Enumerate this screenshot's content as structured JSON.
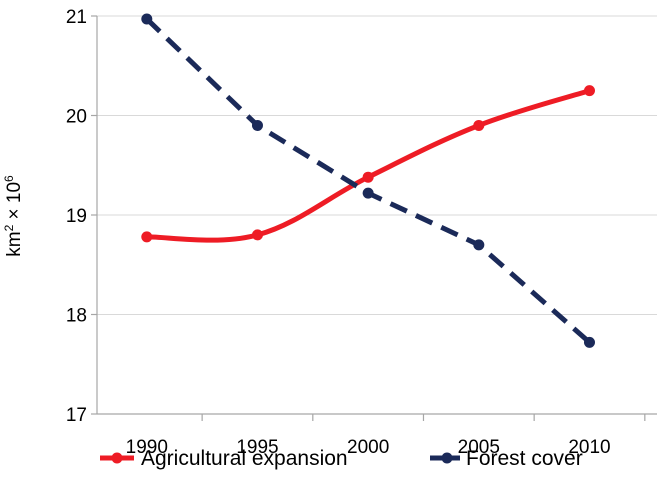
{
  "chart_data": {
    "type": "line",
    "x": [
      1990,
      1995,
      2000,
      2005,
      2010
    ],
    "x_tick_labels": [
      "1990",
      "1995",
      "2000",
      "2005",
      "2010"
    ],
    "y_tick_labels": [
      "17",
      "18",
      "19",
      "20",
      "21"
    ],
    "ylim": [
      17,
      21
    ],
    "ylabel": {
      "base": "km",
      "exp1": "2",
      "times": " × 10",
      "exp2": "6"
    },
    "grid": "horizontal",
    "legend_position": "bottom",
    "series": [
      {
        "name": "Agricultural expansion",
        "values": [
          18.78,
          18.8,
          19.38,
          19.9,
          20.25
        ],
        "color": "#ee1c25",
        "style": "solid-smooth",
        "marker": "circle"
      },
      {
        "name": "Forest cover",
        "values": [
          20.97,
          19.9,
          19.22,
          18.7,
          17.72
        ],
        "color": "#1b2a59",
        "style": "dashed",
        "marker": "circle"
      }
    ]
  }
}
